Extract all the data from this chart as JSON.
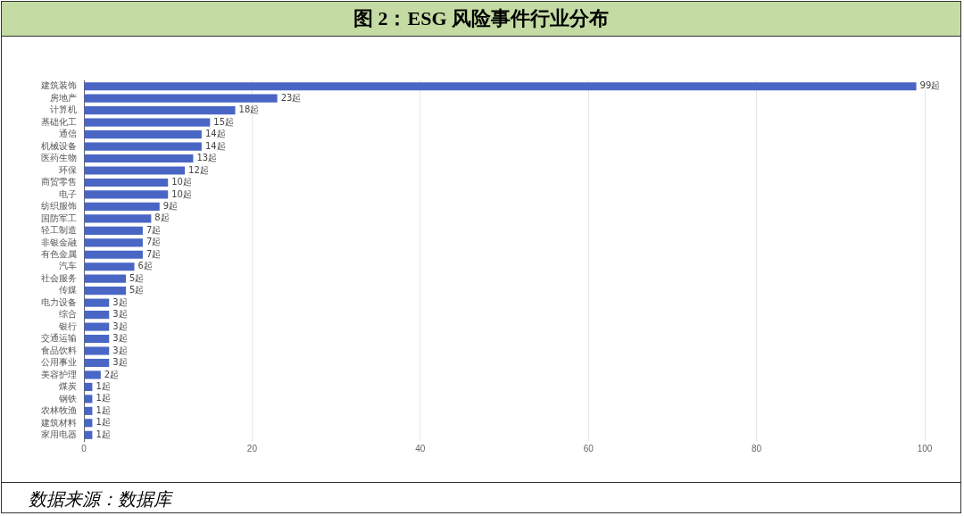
{
  "chart_data": {
    "type": "bar",
    "orientation": "horizontal",
    "title": "图 2：ESG 风险事件行业分布",
    "categories": [
      "建筑装饰",
      "房地产",
      "计算机",
      "基础化工",
      "通信",
      "机械设备",
      "医药生物",
      "环保",
      "商贸零售",
      "电子",
      "纺织服饰",
      "国防军工",
      "轻工制造",
      "非银金融",
      "有色金属",
      "汽车",
      "社会服务",
      "传媒",
      "电力设备",
      "综合",
      "银行",
      "交通运输",
      "食品饮料",
      "公用事业",
      "美容护理",
      "煤炭",
      "钢铁",
      "农林牧渔",
      "建筑材料",
      "家用电器"
    ],
    "values": [
      99,
      23,
      18,
      15,
      14,
      14,
      13,
      12,
      10,
      10,
      9,
      8,
      7,
      7,
      7,
      6,
      5,
      5,
      3,
      3,
      3,
      3,
      3,
      3,
      2,
      1,
      1,
      1,
      1,
      1
    ],
    "value_labels": [
      "99起",
      "23起",
      "18起",
      "15起",
      "14起",
      "14起",
      "13起",
      "12起",
      "10起",
      "10起",
      "9起",
      "8起",
      "7起",
      "7起",
      "7起",
      "6起",
      "5起",
      "5起",
      "3起",
      "3起",
      "3起",
      "3起",
      "3起",
      "3起",
      "2起",
      "1起",
      "1起",
      "1起",
      "1起",
      "1起"
    ],
    "color": "#4a66c4",
    "xlim": [
      0,
      100
    ],
    "xticks": [
      0,
      20,
      40,
      60,
      80,
      100
    ],
    "grid": "x",
    "annotations": [
      "数据来源：数据库"
    ]
  }
}
